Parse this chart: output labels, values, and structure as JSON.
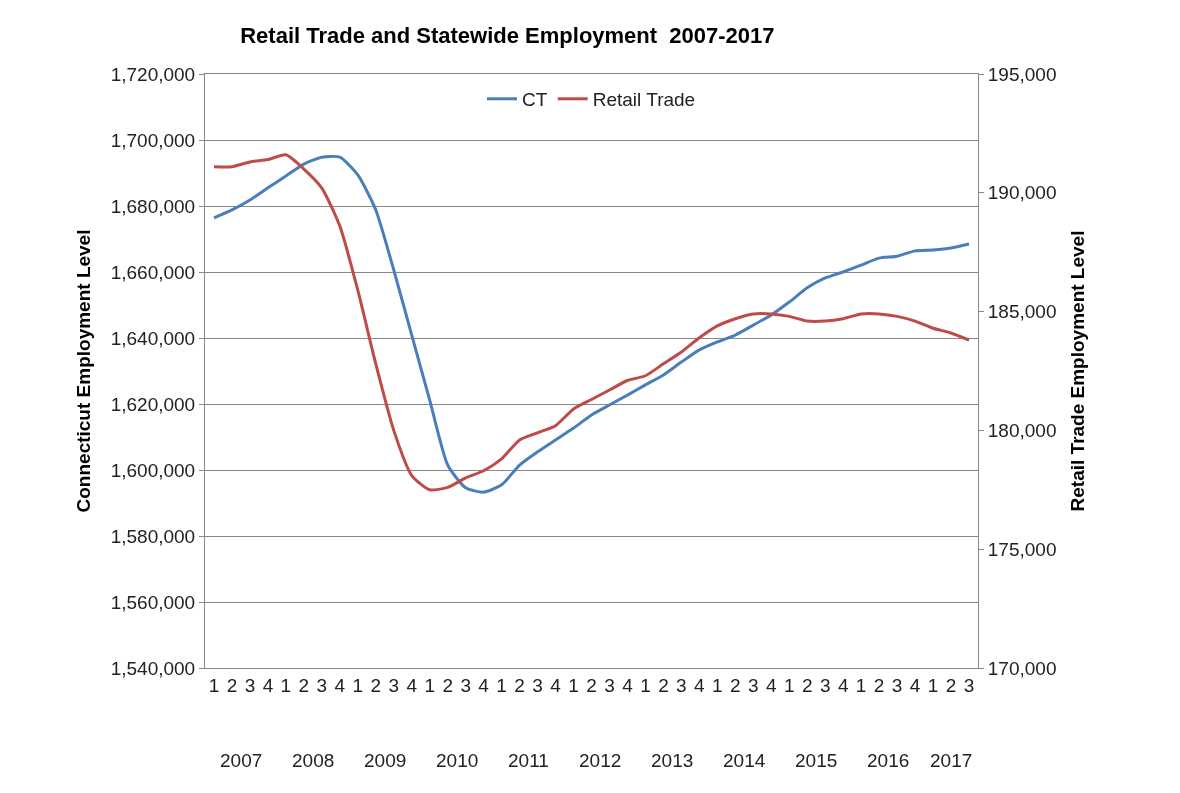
{
  "chart_data": {
    "type": "line",
    "title": "Retail Trade and Statewide Employment  2007-2017",
    "ylabel": "Connecticut Employment Level",
    "y2label": "Retail Trade Employment Level",
    "categories": [
      "1",
      "2",
      "3",
      "4",
      "1",
      "2",
      "3",
      "4",
      "1",
      "2",
      "3",
      "4",
      "1",
      "2",
      "3",
      "4",
      "1",
      "2",
      "3",
      "4",
      "1",
      "2",
      "3",
      "4",
      "1",
      "2",
      "3",
      "4",
      "1",
      "2",
      "3",
      "4",
      "1",
      "2",
      "3",
      "4",
      "1",
      "2",
      "3",
      "4",
      "1",
      "2",
      "3"
    ],
    "annotations": [
      "2007",
      "2008",
      "2009",
      "2010",
      "2011",
      "2012",
      "2013",
      "2014",
      "2015",
      "2016",
      "2017"
    ],
    "series": [
      {
        "name": "CT",
        "color": "#4a7ebb",
        "values": [
          1676400,
          1678800,
          1681800,
          1685500,
          1689100,
          1692700,
          1694800,
          1694800,
          1689400,
          1678800,
          1660600,
          1640900,
          1621200,
          1601500,
          1594600,
          1593300,
          1595500,
          1601500,
          1605500,
          1609100,
          1612700,
          1616700,
          1619700,
          1622700,
          1625800,
          1628800,
          1632700,
          1636400,
          1638800,
          1640900,
          1643900,
          1647000,
          1650900,
          1655200,
          1658200,
          1660000,
          1662100,
          1664200,
          1664800,
          1666400,
          1666700,
          1667300,
          1668500
        ]
      },
      {
        "name": "Retail Trade",
        "color": "#be4b48",
        "axis": "y2",
        "values": [
          191100,
          191100,
          191300,
          191400,
          191600,
          191000,
          190200,
          188600,
          185900,
          182800,
          180000,
          178100,
          177500,
          177600,
          178000,
          178300,
          178800,
          179600,
          179900,
          180200,
          180900,
          181300,
          181700,
          182100,
          182300,
          182800,
          183300,
          183900,
          184400,
          184700,
          184900,
          184900,
          184800,
          184600,
          184600,
          184700,
          184900,
          184900,
          184800,
          184600,
          184300,
          184100,
          183800
        ]
      }
    ],
    "ylim": [
      1540000,
      1720000
    ],
    "yticks": [
      {
        "value": 1540000,
        "label": "1,540,000"
      },
      {
        "value": 1560000,
        "label": "1,560,000"
      },
      {
        "value": 1580000,
        "label": "1,580,000"
      },
      {
        "value": 1600000,
        "label": "1,600,000"
      },
      {
        "value": 1620000,
        "label": "1,620,000"
      },
      {
        "value": 1640000,
        "label": "1,640,000"
      },
      {
        "value": 1660000,
        "label": "1,660,000"
      },
      {
        "value": 1680000,
        "label": "1,680,000"
      },
      {
        "value": 1700000,
        "label": "1,700,000"
      },
      {
        "value": 1720000,
        "label": "1,720,000"
      }
    ],
    "y2lim": [
      170000,
      195000
    ],
    "y2ticks": [
      {
        "value": 170000,
        "label": "170,000"
      },
      {
        "value": 175000,
        "label": "175,000"
      },
      {
        "value": 180000,
        "label": "180,000"
      },
      {
        "value": 185000,
        "label": "185,000"
      },
      {
        "value": 190000,
        "label": "190,000"
      },
      {
        "value": 195000,
        "label": "195,000"
      }
    ],
    "grid": "y",
    "legend": "top",
    "marker": "none",
    "line_style": "solid"
  }
}
